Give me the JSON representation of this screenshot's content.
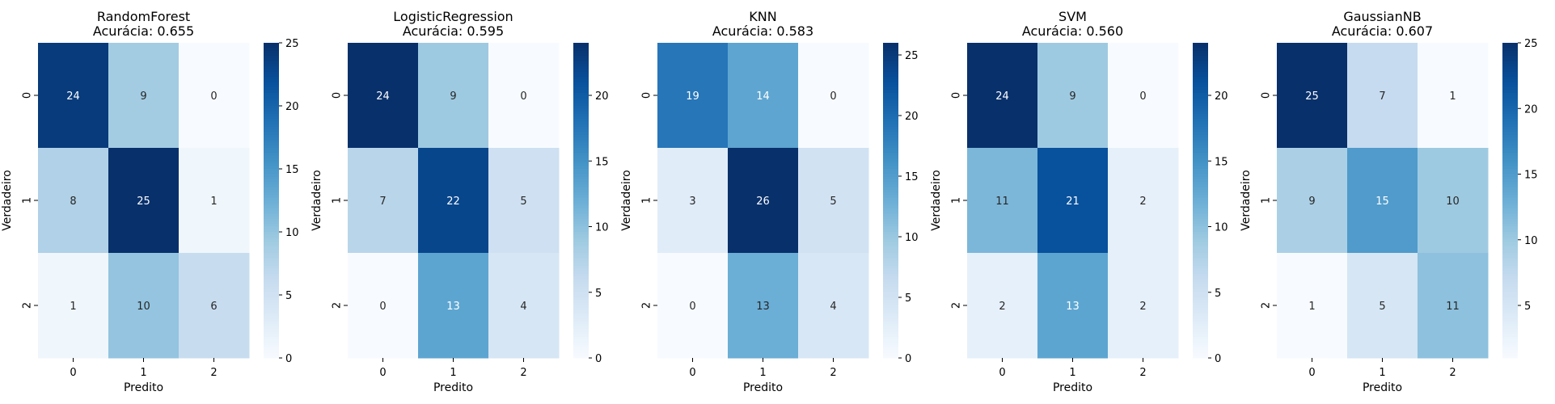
{
  "chart_data": [
    {
      "type": "heatmap",
      "title": "RandomForest",
      "subtitle": "Acurácia: 0.655",
      "xlabel": "Predito",
      "ylabel": "Verdadeiro",
      "x_categories": [
        "0",
        "1",
        "2"
      ],
      "y_categories": [
        "0",
        "1",
        "2"
      ],
      "values": [
        [
          24,
          9,
          0
        ],
        [
          8,
          25,
          1
        ],
        [
          1,
          10,
          6
        ]
      ],
      "colorbar": {
        "min": 0,
        "max": 25,
        "ticks": [
          "0",
          "5",
          "10",
          "15",
          "20",
          "25"
        ],
        "colormap": "Blues"
      }
    },
    {
      "type": "heatmap",
      "title": "LogisticRegression",
      "subtitle": "Acurácia: 0.595",
      "xlabel": "Predito",
      "ylabel": "Verdadeiro",
      "x_categories": [
        "0",
        "1",
        "2"
      ],
      "y_categories": [
        "0",
        "1",
        "2"
      ],
      "values": [
        [
          24,
          9,
          0
        ],
        [
          7,
          22,
          5
        ],
        [
          0,
          13,
          4
        ]
      ],
      "colorbar": {
        "min": 0,
        "max": 24,
        "ticks": [
          "0",
          "5",
          "10",
          "15",
          "20"
        ],
        "colormap": "Blues"
      }
    },
    {
      "type": "heatmap",
      "title": "KNN",
      "subtitle": "Acurácia: 0.583",
      "xlabel": "Predito",
      "ylabel": "Verdadeiro",
      "x_categories": [
        "0",
        "1",
        "2"
      ],
      "y_categories": [
        "0",
        "1",
        "2"
      ],
      "values": [
        [
          19,
          14,
          0
        ],
        [
          3,
          26,
          5
        ],
        [
          0,
          13,
          4
        ]
      ],
      "colorbar": {
        "min": 0,
        "max": 26,
        "ticks": [
          "0",
          "5",
          "10",
          "15",
          "20",
          "25"
        ],
        "colormap": "Blues"
      }
    },
    {
      "type": "heatmap",
      "title": "SVM",
      "subtitle": "Acurácia: 0.560",
      "xlabel": "Predito",
      "ylabel": "Verdadeiro",
      "x_categories": [
        "0",
        "1",
        "2"
      ],
      "y_categories": [
        "0",
        "1",
        "2"
      ],
      "values": [
        [
          24,
          9,
          0
        ],
        [
          11,
          21,
          2
        ],
        [
          2,
          13,
          2
        ]
      ],
      "colorbar": {
        "min": 0,
        "max": 24,
        "ticks": [
          "0",
          "5",
          "10",
          "15",
          "20"
        ],
        "colormap": "Blues"
      }
    },
    {
      "type": "heatmap",
      "title": "GaussianNB",
      "subtitle": "Acurácia: 0.607",
      "xlabel": "Predito",
      "ylabel": "Verdadeiro",
      "x_categories": [
        "0",
        "1",
        "2"
      ],
      "y_categories": [
        "0",
        "1",
        "2"
      ],
      "values": [
        [
          25,
          7,
          1
        ],
        [
          9,
          15,
          10
        ],
        [
          1,
          5,
          11
        ]
      ],
      "colorbar": {
        "min": 1,
        "max": 25,
        "ticks": [
          "5",
          "10",
          "15",
          "20",
          "25"
        ],
        "colormap": "Blues"
      }
    }
  ]
}
